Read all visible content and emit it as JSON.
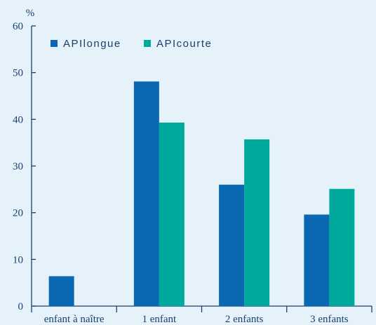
{
  "chart_data": {
    "type": "bar",
    "ylabel": "%",
    "ylim": [
      0,
      60
    ],
    "yticks": [
      0,
      10,
      20,
      30,
      40,
      50,
      60
    ],
    "categories": [
      "enfant à naître",
      "1 enfant",
      "2 enfants",
      "3 enfants"
    ],
    "series": [
      {
        "name": "APIlongue",
        "values": [
          6.4,
          48.1,
          26.0,
          19.6
        ]
      },
      {
        "name": "APIcourte",
        "values": [
          0,
          39.3,
          35.7,
          25.1
        ]
      }
    ],
    "legend_position": "top-left",
    "grid": false
  },
  "colors": {
    "background": "#e6f2f9",
    "axis": "#1a3e6e",
    "series": [
      "#0a68b2",
      "#00a99d"
    ]
  }
}
